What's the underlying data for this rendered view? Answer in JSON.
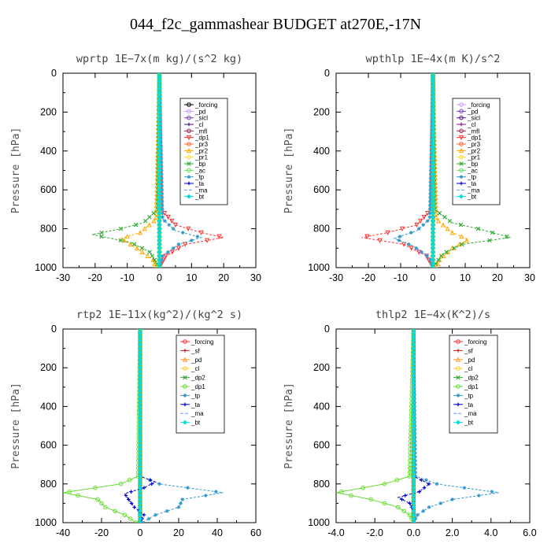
{
  "title": "044_f2c_gammashear  BUDGET at270E,-17N",
  "chart_data": [
    {
      "type": "line",
      "subtitle": "wprtp  1E−7x(m kg)/(s^2 kg)",
      "ylabel": "Pressure [hPa]",
      "xlim": [
        -30,
        30
      ],
      "ylim": [
        1000,
        0
      ],
      "x_ticks": [
        "-30",
        "-20",
        "-10",
        "0",
        "10",
        "20",
        "30"
      ],
      "y_ticks": [
        "0",
        "200",
        "400",
        "600",
        "800",
        "1000"
      ],
      "legend_position": "top-right",
      "series": [
        {
          "name": "_forcing",
          "color": "#000000",
          "marker": "o",
          "pressure": [
            0,
            200,
            400,
            600,
            800,
            1000
          ],
          "values": [
            0,
            0,
            0,
            0,
            0,
            0
          ]
        },
        {
          "name": "_pd",
          "color": "#cc99ff",
          "marker": "o",
          "pressure": [
            0,
            1000
          ],
          "values": [
            0,
            0
          ]
        },
        {
          "name": "_sicl",
          "color": "#7b3fbf",
          "marker": "o",
          "pressure": [
            0,
            1000
          ],
          "values": [
            0,
            0
          ]
        },
        {
          "name": "_cl",
          "color": "#551a8b",
          "marker": "+",
          "pressure": [
            0,
            1000
          ],
          "values": [
            0,
            0
          ]
        },
        {
          "name": "_mfl",
          "color": "#a02050",
          "marker": "o",
          "pressure": [
            0,
            1000
          ],
          "values": [
            0,
            0
          ]
        },
        {
          "name": "_dp1",
          "color": "#ff3333",
          "marker": "v",
          "pressure": [
            0,
            700,
            780,
            820,
            845,
            880,
            940,
            1000
          ],
          "values": [
            0,
            0.5,
            5,
            13,
            20,
            8,
            2,
            0
          ]
        },
        {
          "name": "_pr3",
          "color": "#ff6633",
          "marker": "o",
          "pressure": [
            0,
            1000
          ],
          "values": [
            0,
            0
          ]
        },
        {
          "name": "_pr2",
          "color": "#ffaa00",
          "marker": "^",
          "pressure": [
            0,
            750,
            820,
            850,
            900,
            960,
            1000
          ],
          "values": [
            0,
            -1,
            -6,
            -12,
            -7,
            -2,
            -1
          ]
        },
        {
          "name": "_pr1",
          "color": "#ffdd33",
          "marker": "o",
          "pressure": [
            0,
            1000
          ],
          "values": [
            0,
            0
          ]
        },
        {
          "name": "_bp",
          "color": "#33aa33",
          "marker": "x",
          "pressure": [
            0,
            700,
            770,
            800,
            830,
            870,
            920,
            1000
          ],
          "values": [
            0,
            -0.5,
            -5,
            -12,
            -21,
            -9,
            -3,
            0
          ]
        },
        {
          "name": "_ac",
          "color": "#66dd66",
          "marker": "o",
          "pressure": [
            0,
            1000
          ],
          "values": [
            0,
            0
          ]
        },
        {
          "name": "_tp",
          "color": "#3399cc",
          "marker": "*",
          "pressure": [
            0,
            750,
            810,
            845,
            880,
            940,
            1000
          ],
          "values": [
            0,
            1,
            5,
            13,
            6,
            1,
            0
          ]
        },
        {
          "name": "_ta",
          "color": "#0000cc",
          "marker": "+",
          "pressure": [
            0,
            1000
          ],
          "values": [
            0,
            0
          ]
        },
        {
          "name": "_ma",
          "color": "#6699ff",
          "marker": "-",
          "pressure": [
            0,
            1000
          ],
          "values": [
            0,
            0
          ]
        },
        {
          "name": "_bt",
          "color": "#00dddd",
          "marker": "D",
          "pressure": [
            0,
            1000
          ],
          "values": [
            0,
            0
          ]
        }
      ]
    },
    {
      "type": "line",
      "subtitle": "wpthlp  1E−4x(m K)/s^2",
      "ylabel": "Pressure [hPa]",
      "xlim": [
        -30,
        30
      ],
      "ylim": [
        1000,
        0
      ],
      "x_ticks": [
        "-30",
        "-20",
        "-10",
        "0",
        "10",
        "20",
        "30"
      ],
      "y_ticks": [
        "0",
        "200",
        "400",
        "600",
        "800",
        "1000"
      ],
      "legend_position": "top-right",
      "series": [
        {
          "name": "_forcing",
          "color": "#cc99ff",
          "marker": "o",
          "pressure": [
            0,
            200,
            400,
            600,
            800,
            1000
          ],
          "values": [
            0,
            0,
            0,
            0,
            0,
            0
          ]
        },
        {
          "name": "_pd",
          "color": "#7b3fbf",
          "marker": "o",
          "pressure": [
            0,
            1000
          ],
          "values": [
            0,
            0
          ]
        },
        {
          "name": "_sicl",
          "color": "#551a8b",
          "marker": "o",
          "pressure": [
            0,
            1000
          ],
          "values": [
            0,
            0
          ]
        },
        {
          "name": "_cl",
          "color": "#8b1a8b",
          "marker": "+",
          "pressure": [
            0,
            1000
          ],
          "values": [
            0,
            0
          ]
        },
        {
          "name": "_mfl",
          "color": "#a02050",
          "marker": "o",
          "pressure": [
            0,
            1000
          ],
          "values": [
            0,
            0
          ]
        },
        {
          "name": "_dp1",
          "color": "#ff3333",
          "marker": "v",
          "pressure": [
            0,
            700,
            780,
            820,
            845,
            880,
            940,
            1000
          ],
          "values": [
            0,
            -0.5,
            -5,
            -14,
            -22,
            -9,
            -2,
            0
          ]
        },
        {
          "name": "_pr3",
          "color": "#ff6633",
          "marker": "o",
          "pressure": [
            0,
            1000
          ],
          "values": [
            0,
            0
          ]
        },
        {
          "name": "_pr2",
          "color": "#ffaa00",
          "marker": "^",
          "pressure": [
            0,
            750,
            820,
            855,
            900,
            960,
            1000
          ],
          "values": [
            0,
            1,
            6,
            11,
            6,
            2,
            1
          ]
        },
        {
          "name": "_pr1",
          "color": "#ffdd33",
          "marker": "o",
          "pressure": [
            0,
            1000
          ],
          "values": [
            0,
            0
          ]
        },
        {
          "name": "_bp",
          "color": "#33aa33",
          "marker": "x",
          "pressure": [
            0,
            700,
            770,
            800,
            845,
            880,
            930,
            1000
          ],
          "values": [
            0,
            0.5,
            6,
            14,
            24,
            9,
            3,
            0
          ]
        },
        {
          "name": "_ac",
          "color": "#66dd66",
          "marker": "o",
          "pressure": [
            0,
            1000
          ],
          "values": [
            0,
            0
          ]
        },
        {
          "name": "_tp",
          "color": "#3399cc",
          "marker": "*",
          "pressure": [
            0,
            750,
            810,
            850,
            890,
            950,
            1000
          ],
          "values": [
            0,
            -1,
            -5,
            -12,
            -6,
            -1,
            0
          ]
        },
        {
          "name": "_ta",
          "color": "#0000cc",
          "marker": "+",
          "pressure": [
            0,
            1000
          ],
          "values": [
            0,
            0
          ]
        },
        {
          "name": "_ma",
          "color": "#6699ff",
          "marker": "-",
          "pressure": [
            0,
            1000
          ],
          "values": [
            0,
            0
          ]
        },
        {
          "name": "_bt",
          "color": "#00dddd",
          "marker": "D",
          "pressure": [
            0,
            1000
          ],
          "values": [
            0,
            0
          ]
        }
      ]
    },
    {
      "type": "line",
      "subtitle": "rtp2  1E−11x(kg^2)/(kg^2 s)",
      "ylabel": "Pressure [hPa]",
      "xlim": [
        -40,
        60
      ],
      "ylim": [
        1000,
        0
      ],
      "x_ticks": [
        "-40",
        "-20",
        "0",
        "20",
        "40",
        "60"
      ],
      "y_ticks": [
        "0",
        "200",
        "400",
        "600",
        "800",
        "1000"
      ],
      "legend_position": "top-right",
      "series": [
        {
          "name": "_forcing",
          "color": "#ff3333",
          "marker": "o",
          "pressure": [
            0,
            200,
            400,
            600,
            800,
            1000
          ],
          "values": [
            0,
            0,
            0,
            0,
            0,
            0
          ]
        },
        {
          "name": "_sf",
          "color": "#cc2222",
          "marker": "+",
          "pressure": [
            0,
            1000
          ],
          "values": [
            0,
            0
          ]
        },
        {
          "name": "_pd",
          "color": "#ff9933",
          "marker": "^",
          "pressure": [
            0,
            1000
          ],
          "values": [
            0,
            0
          ]
        },
        {
          "name": "_cl",
          "color": "#ffcc33",
          "marker": "o",
          "pressure": [
            0,
            1000
          ],
          "values": [
            0,
            0
          ]
        },
        {
          "name": "_dp2",
          "color": "#33aa33",
          "marker": "x",
          "pressure": [
            0,
            1000
          ],
          "values": [
            0,
            0
          ]
        },
        {
          "name": "_dp1",
          "color": "#66dd33",
          "marker": "o",
          "pressure": [
            0,
            760,
            800,
            845,
            880,
            920,
            960,
            1000
          ],
          "values": [
            0,
            -1,
            -10,
            -40,
            -22,
            -18,
            -8,
            -2
          ]
        },
        {
          "name": "_tp",
          "color": "#3399cc",
          "marker": "*",
          "pressure": [
            0,
            760,
            800,
            845,
            880,
            920,
            960,
            1000
          ],
          "values": [
            0,
            0,
            10,
            43,
            22,
            20,
            8,
            1
          ]
        },
        {
          "name": "_ta",
          "color": "#0000cc",
          "marker": "+",
          "pressure": [
            0,
            760,
            790,
            820,
            850,
            880,
            920,
            960,
            1000
          ],
          "values": [
            0,
            0,
            8,
            2,
            -8,
            -6,
            -3,
            2,
            0
          ]
        },
        {
          "name": "_ma",
          "color": "#6699ff",
          "marker": "-",
          "pressure": [
            0,
            1000
          ],
          "values": [
            0,
            0
          ]
        },
        {
          "name": "_bt",
          "color": "#00dddd",
          "marker": "D",
          "pressure": [
            0,
            1000
          ],
          "values": [
            0,
            0
          ]
        }
      ]
    },
    {
      "type": "line",
      "subtitle": "thlp2  1E−4x(K^2)/s",
      "ylabel": "Pressure [hPa]",
      "xlim": [
        -4,
        6
      ],
      "ylim": [
        1000,
        0
      ],
      "x_ticks": [
        "-4.0",
        "-2.0",
        "0.0",
        "2.0",
        "4.0",
        "6.0"
      ],
      "y_ticks": [
        "0",
        "200",
        "400",
        "600",
        "800",
        "1000"
      ],
      "legend_position": "top-right",
      "series": [
        {
          "name": "_forcing",
          "color": "#ff3333",
          "marker": "o",
          "pressure": [
            0,
            200,
            400,
            600,
            800,
            1000
          ],
          "values": [
            0,
            0,
            0,
            0,
            0,
            0
          ]
        },
        {
          "name": "_sf",
          "color": "#cc2222",
          "marker": "+",
          "pressure": [
            0,
            1000
          ],
          "values": [
            0,
            0
          ]
        },
        {
          "name": "_pd",
          "color": "#ff9933",
          "marker": "^",
          "pressure": [
            0,
            1000
          ],
          "values": [
            0,
            0
          ]
        },
        {
          "name": "_cl",
          "color": "#ffcc33",
          "marker": "o",
          "pressure": [
            0,
            1000
          ],
          "values": [
            0,
            0
          ]
        },
        {
          "name": "_dp2",
          "color": "#33aa33",
          "marker": "x",
          "pressure": [
            0,
            1000
          ],
          "values": [
            0,
            0
          ]
        },
        {
          "name": "_dp1",
          "color": "#66dd33",
          "marker": "o",
          "pressure": [
            0,
            760,
            800,
            845,
            880,
            920,
            960,
            1000
          ],
          "values": [
            0,
            -0.2,
            -1.5,
            -4.0,
            -2.2,
            -0.8,
            -0.2,
            0
          ]
        },
        {
          "name": "_tp",
          "color": "#3399cc",
          "marker": "*",
          "pressure": [
            0,
            760,
            800,
            845,
            880,
            920,
            960,
            1000
          ],
          "values": [
            0,
            0.1,
            1.2,
            4.4,
            2.0,
            0.8,
            0.2,
            0
          ]
        },
        {
          "name": "_ta",
          "color": "#0000cc",
          "marker": "+",
          "pressure": [
            0,
            760,
            800,
            840,
            870,
            900,
            940,
            1000
          ],
          "values": [
            0,
            0,
            0.8,
            0.3,
            -0.8,
            -0.2,
            0,
            0
          ]
        },
        {
          "name": "_ma",
          "color": "#6699ff",
          "marker": "-",
          "pressure": [
            0,
            1000
          ],
          "values": [
            0,
            0
          ]
        },
        {
          "name": "_bt",
          "color": "#00dddd",
          "marker": "D",
          "pressure": [
            0,
            1000
          ],
          "values": [
            0,
            0
          ]
        }
      ]
    }
  ]
}
